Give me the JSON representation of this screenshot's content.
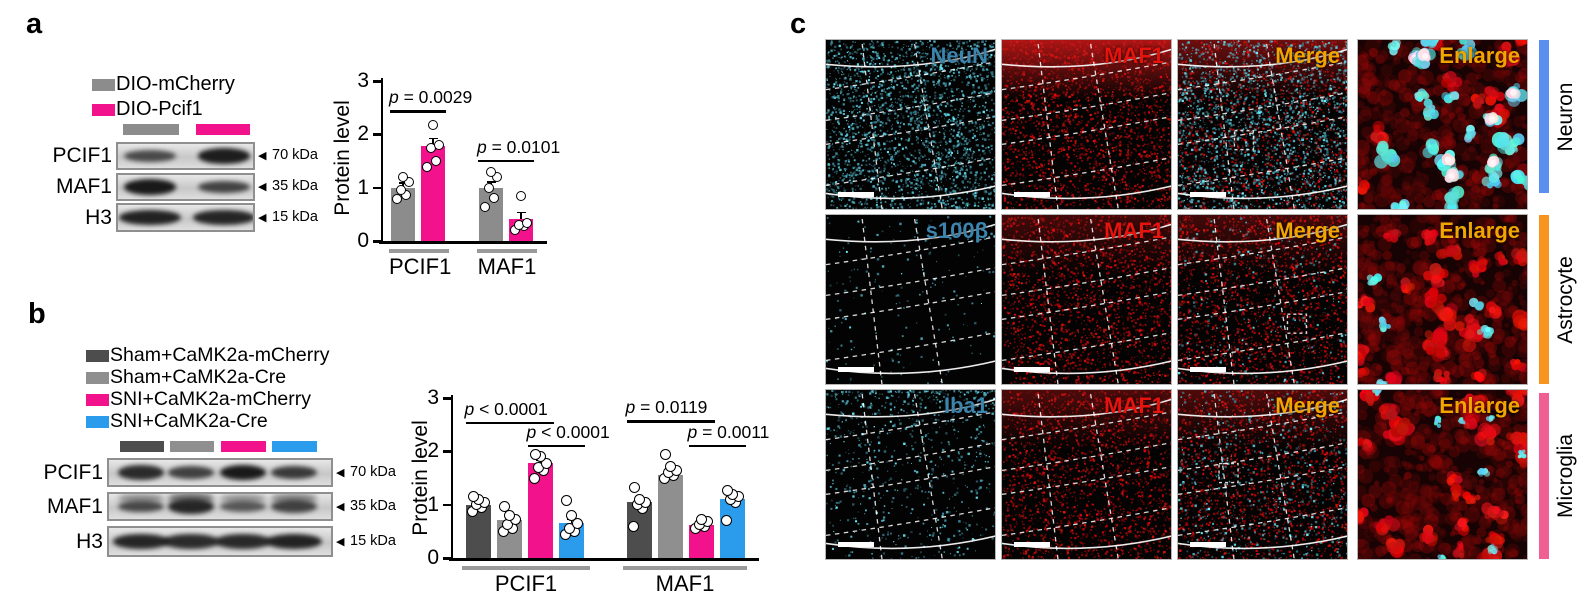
{
  "panel_a": {
    "label": "a",
    "legend": [
      {
        "label": "DIO-mCherry",
        "color": "#8c8c8c"
      },
      {
        "label": "DIO-Pcif1",
        "color": "#f2128c"
      }
    ],
    "blot": {
      "lane_colors": [
        "#8c8c8c",
        "#f2128c"
      ],
      "rows": [
        {
          "protein": "PCIF1",
          "kda": "70 kDa",
          "bands": [
            0.55,
            0.92
          ]
        },
        {
          "protein": "MAF1",
          "kda": "35 kDa",
          "bands": [
            0.95,
            0.6
          ]
        },
        {
          "protein": "H3",
          "kda": "15 kDa",
          "bands": [
            0.88,
            0.85
          ]
        }
      ]
    }
  },
  "panel_b": {
    "label": "b",
    "legend": [
      {
        "label": "Sham+CaMK2a-mCherry",
        "color": "#4d4d4d"
      },
      {
        "label": "Sham+CaMK2a-Cre",
        "color": "#8f8f8f"
      },
      {
        "label": "SNI+CaMK2a-mCherry",
        "color": "#f2128c"
      },
      {
        "label": "SNI+CaMK2a-Cre",
        "color": "#2b9ceb"
      }
    ],
    "blot": {
      "lane_colors": [
        "#4d4d4d",
        "#8f8f8f",
        "#f2128c",
        "#2b9ceb"
      ],
      "rows": [
        {
          "protein": "PCIF1",
          "kda": "70 kDa",
          "bands": [
            0.8,
            0.62,
            0.95,
            0.68
          ]
        },
        {
          "protein": "MAF1",
          "kda": "35 kDa",
          "bands": [
            0.55,
            0.85,
            0.42,
            0.6
          ]
        },
        {
          "protein": "H3",
          "kda": "15 kDa",
          "bands": [
            0.85,
            0.8,
            0.82,
            0.88
          ]
        }
      ]
    }
  },
  "chart_data": [
    {
      "type": "bar",
      "panel": "a",
      "title": "",
      "xlabel": "",
      "ylabel": "Protein level",
      "ylim": [
        0,
        3
      ],
      "yticks": [
        0,
        1,
        2,
        3
      ],
      "grid": false,
      "categories": [
        "PCIF1",
        "MAF1"
      ],
      "series": [
        {
          "name": "DIO-mCherry",
          "color": "#8c8c8c",
          "values": [
            1.0,
            1.0
          ],
          "err": [
            0.1,
            0.12
          ],
          "points": [
            [
              0.78,
              0.86,
              0.95,
              1.1,
              1.2
            ],
            [
              0.63,
              0.8,
              1.0,
              1.2,
              1.3
            ]
          ]
        },
        {
          "name": "DIO-Pcif1",
          "color": "#f2128c",
          "values": [
            1.78,
            0.42
          ],
          "err": [
            0.16,
            0.13
          ],
          "points": [
            [
              1.38,
              1.5,
              1.75,
              1.8,
              2.18
            ],
            [
              0.2,
              0.28,
              0.3,
              0.33,
              0.85
            ]
          ]
        }
      ],
      "annotations": [
        {
          "text": "p = 0.0029",
          "category": 0,
          "bars": [
            0,
            1
          ],
          "y": 2.45
        },
        {
          "text": "p = 0.0101",
          "category": 1,
          "bars": [
            0,
            1
          ],
          "y": 1.52
        }
      ]
    },
    {
      "type": "bar",
      "panel": "b",
      "title": "",
      "xlabel": "",
      "ylabel": "Protein level",
      "ylim": [
        0,
        3
      ],
      "yticks": [
        0,
        1,
        2,
        3
      ],
      "grid": false,
      "categories": [
        "PCIF1",
        "MAF1"
      ],
      "series": [
        {
          "name": "Sham+CaMK2a-mCherry",
          "color": "#4d4d4d",
          "values": [
            1.0,
            1.05
          ],
          "err": [
            0.06,
            0.1
          ],
          "points": [
            [
              0.88,
              0.95,
              1.0,
              1.05,
              1.1,
              1.15
            ],
            [
              0.6,
              0.92,
              1.0,
              1.05,
              1.1,
              1.32
            ]
          ]
        },
        {
          "name": "Sham+CaMK2a-Cre",
          "color": "#8f8f8f",
          "values": [
            0.72,
            1.55
          ],
          "err": [
            0.09,
            0.07
          ],
          "points": [
            [
              0.5,
              0.56,
              0.62,
              0.72,
              0.8,
              0.97
            ],
            [
              1.5,
              1.55,
              1.6,
              1.65,
              1.72,
              1.95
            ]
          ]
        },
        {
          "name": "SNI+CaMK2a-mCherry",
          "color": "#f2128c",
          "values": [
            1.78,
            0.62
          ],
          "err": [
            0.07,
            0.04
          ],
          "points": [
            [
              1.5,
              1.65,
              1.7,
              1.78,
              1.9,
              1.95
            ],
            [
              0.55,
              0.6,
              0.63,
              0.68,
              0.73
            ]
          ]
        },
        {
          "name": "SNI+CaMK2a-Cre",
          "color": "#2b9ceb",
          "values": [
            0.65,
            1.1
          ],
          "err": [
            0.09,
            0.07
          ],
          "points": [
            [
              0.45,
              0.5,
              0.56,
              0.65,
              0.8,
              1.07
            ],
            [
              0.7,
              1.05,
              1.1,
              1.15,
              1.2,
              1.27
            ]
          ]
        }
      ],
      "annotations": [
        {
          "text": "p < 0.0001",
          "category": 0,
          "bars": [
            0,
            2
          ],
          "y": 2.55
        },
        {
          "text": "p < 0.0001",
          "category": 0,
          "bars": [
            2,
            3
          ],
          "y": 2.12
        },
        {
          "text": "p = 0.0119",
          "category": 1,
          "bars": [
            0,
            2
          ],
          "y": 2.58
        },
        {
          "text": "p = 0.0011",
          "category": 1,
          "bars": [
            2,
            3
          ],
          "y": 2.12
        }
      ]
    }
  ],
  "panel_c": {
    "label": "c",
    "rows": [
      {
        "side_label": "Neuron",
        "side_color": "#5c8df0",
        "cells": [
          {
            "label": "NeuN",
            "label_color": "#3b84ad",
            "type": "field",
            "cyan": 0.95,
            "red": 0,
            "glow": 0,
            "scalebar": true
          },
          {
            "label": "MAF1",
            "label_color": "#e8130c",
            "type": "field",
            "cyan": 0,
            "red": 0.95,
            "glow": 0.8,
            "scalebar": true
          },
          {
            "label": "Merge",
            "label_color": "#f0a500",
            "type": "field",
            "cyan": 0.8,
            "red": 0.7,
            "glow": 0.5,
            "scalebar": true,
            "box": [
              0.33,
              0.53
            ]
          },
          {
            "label": "Enlarge",
            "label_color": "#f0a500",
            "type": "enlarge",
            "palette": "neuron"
          }
        ]
      },
      {
        "side_label": "Astrocyte",
        "side_color": "#f7941e",
        "cells": [
          {
            "label": "s100β",
            "label_color": "#3b84ad",
            "type": "field",
            "cyan": 0.07,
            "red": 0,
            "glow": 0,
            "scalebar": true
          },
          {
            "label": "MAF1",
            "label_color": "#e8130c",
            "type": "field",
            "cyan": 0,
            "red": 0.9,
            "glow": 0.3,
            "scalebar": true
          },
          {
            "label": "Merge",
            "label_color": "#f0a500",
            "type": "field",
            "cyan": 0.1,
            "red": 0.85,
            "glow": 0.3,
            "scalebar": true,
            "box": [
              0.64,
              0.58
            ]
          },
          {
            "label": "Enlarge",
            "label_color": "#f0a500",
            "type": "enlarge",
            "palette": "astrocyte"
          }
        ]
      },
      {
        "side_label": "Microglia",
        "side_color": "#ef5f92",
        "cells": [
          {
            "label": "Iba1",
            "label_color": "#3b84ad",
            "type": "field",
            "cyan": 0.3,
            "red": 0,
            "glow": 0,
            "top_weight": true,
            "scalebar": true
          },
          {
            "label": "MAF1",
            "label_color": "#e8130c",
            "type": "field",
            "cyan": 0,
            "red": 0.85,
            "glow": 0.35,
            "scalebar": true
          },
          {
            "label": "Merge",
            "label_color": "#f0a500",
            "type": "field",
            "cyan": 0.25,
            "red": 0.8,
            "glow": 0.35,
            "scalebar": true,
            "box": [
              0.24,
              0.43
            ]
          },
          {
            "label": "Enlarge",
            "label_color": "#f0a500",
            "type": "enlarge",
            "palette": "microglia"
          }
        ]
      }
    ]
  }
}
